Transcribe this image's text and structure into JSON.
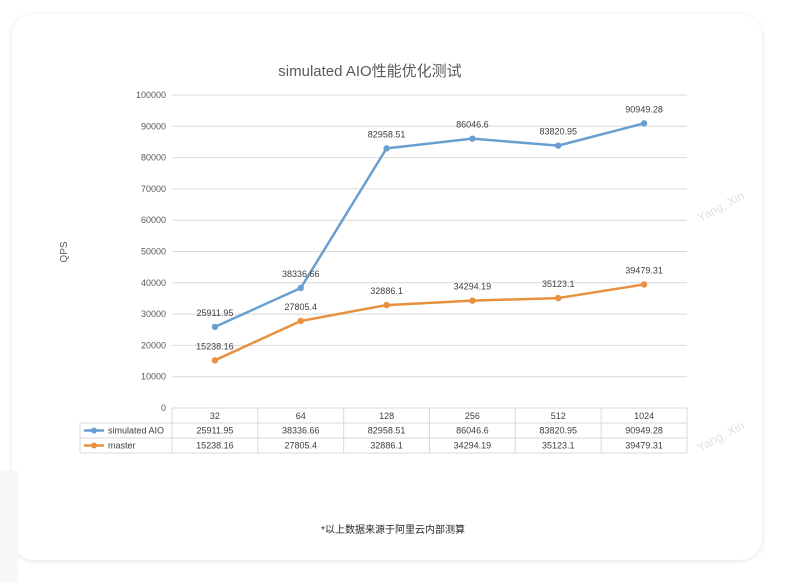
{
  "chart_data": {
    "type": "line",
    "title": "simulated AIO性能优化测试",
    "ylabel": "QPS",
    "xlabel": "",
    "categories": [
      "32",
      "64",
      "128",
      "256",
      "512",
      "1024"
    ],
    "series": [
      {
        "name": "simulated AIO",
        "color": "#6a9fd1",
        "values": [
          25911.95,
          38336.66,
          82958.51,
          86046.6,
          83820.95,
          90949.28
        ],
        "labels": [
          "25911.95",
          "38336.66",
          "82958.51",
          "86046.6",
          "83820.95",
          "90949.28"
        ]
      },
      {
        "name": "master",
        "color": "#e8913f",
        "values": [
          15238.16,
          27805.4,
          32886.1,
          34294.19,
          35123.1,
          39479.31
        ],
        "labels": [
          "15238.16",
          "27805.4",
          "32886.1",
          "34294.19",
          "35123.1",
          "39479.31"
        ]
      }
    ],
    "ylim": [
      0,
      100000
    ],
    "yticks": [
      "0",
      "10000",
      "20000",
      "30000",
      "40000",
      "50000",
      "60000",
      "70000",
      "80000",
      "90000",
      "100000"
    ],
    "grid": true,
    "legend": "data-table",
    "data_table": true
  },
  "watermark": "Yang, Xin",
  "footnote": "*以上数据来源于阿里云内部测算"
}
